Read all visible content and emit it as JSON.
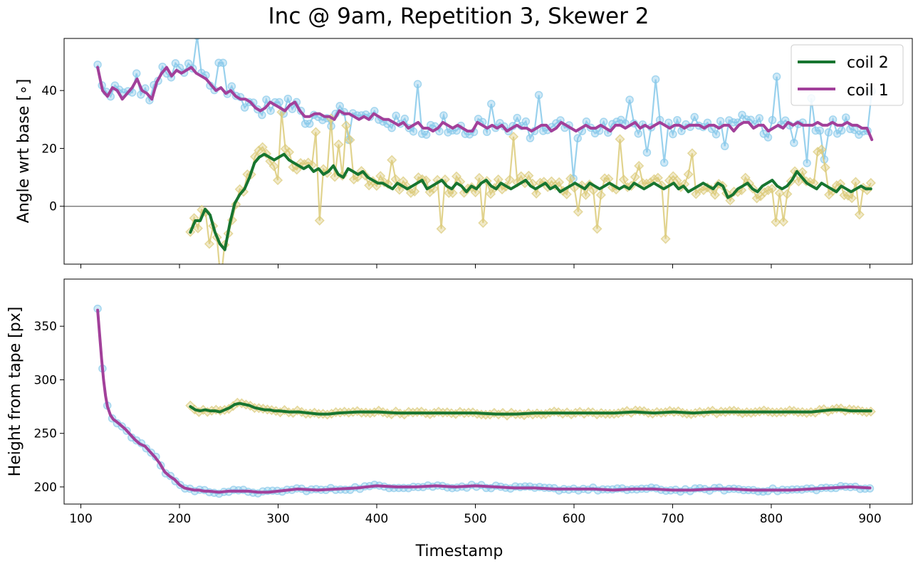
{
  "chart_data": {
    "title": "Inc @ 9am, Repetition 3, Skewer 2",
    "xlabel": "Timestamp",
    "xticks": [
      100,
      200,
      300,
      400,
      500,
      600,
      700,
      800,
      900
    ],
    "xlim": [
      83,
      943
    ],
    "colors": {
      "coil1_line": "#a2409a",
      "coil1_raw": "#87c9ea",
      "coil2_line": "#177530",
      "coil2_raw": "#dccb7a",
      "zero_line": "#808080"
    },
    "legend": {
      "position": "top-right",
      "entries": [
        "coil 2",
        "coil 1"
      ]
    },
    "panels": [
      {
        "type": "line",
        "ylabel": "Angle wrt base [∘]",
        "ylim": [
          -20,
          58
        ],
        "yticks": [
          0,
          20,
          40
        ],
        "hline_y": 0,
        "series": [
          {
            "name": "coil 1",
            "role": "smoothed",
            "x": [
              117,
              122,
              127,
              132,
              137,
              142,
              147,
              152,
              157,
              162,
              167,
              172,
              177,
              182,
              187,
              192,
              197,
              202,
              207,
              212,
              217,
              222,
              227,
              232,
              237,
              242,
              247,
              252,
              257,
              262,
              267,
              272,
              277,
              282,
              287,
              292,
              297,
              302,
              307,
              312,
              317,
              322,
              327,
              332,
              337,
              342,
              347,
              352,
              357,
              362,
              367,
              372,
              377,
              382,
              387,
              392,
              397,
              402,
              407,
              412,
              417,
              422,
              427,
              432,
              437,
              442,
              447,
              452,
              457,
              462,
              467,
              472,
              477,
              482,
              487,
              492,
              497,
              502,
              507,
              512,
              517,
              522,
              527,
              532,
              537,
              542,
              547,
              552,
              557,
              562,
              567,
              572,
              577,
              582,
              587,
              592,
              597,
              602,
              607,
              612,
              617,
              622,
              627,
              632,
              637,
              642,
              647,
              652,
              657,
              662,
              667,
              672,
              677,
              682,
              687,
              692,
              697,
              702,
              707,
              712,
              717,
              722,
              727,
              732,
              737,
              742,
              747,
              752,
              757,
              762,
              767,
              772,
              777,
              782,
              787,
              792,
              797,
              802,
              807,
              812,
              817,
              822,
              827,
              832,
              837,
              842,
              847,
              852,
              857,
              862,
              867,
              872,
              877,
              882,
              887,
              892,
              897,
              902
            ],
            "y": [
              48,
              40,
              38,
              41,
              40,
              37,
              39,
              41,
              44,
              40,
              39,
              37,
              43,
              46,
              48,
              45,
              47,
              46,
              47,
              48,
              46,
              45,
              44,
              42,
              40,
              41,
              39,
              40,
              38,
              37,
              37,
              36,
              34,
              33,
              34,
              36,
              35,
              34,
              33,
              35,
              36,
              33,
              31,
              31,
              32,
              32,
              31,
              31,
              30,
              33,
              32,
              32,
              31,
              30,
              31,
              30,
              32,
              31,
              30,
              30,
              29,
              28,
              29,
              27,
              28,
              29,
              27,
              27,
              26,
              27,
              29,
              28,
              27,
              28,
              27,
              26,
              26,
              29,
              28,
              27,
              28,
              27,
              28,
              26,
              27,
              28,
              27,
              27,
              26,
              27,
              28,
              28,
              26,
              27,
              29,
              28,
              27,
              26,
              27,
              28,
              27,
              27,
              28,
              27,
              26,
              28,
              28,
              27,
              28,
              29,
              27,
              28,
              27,
              28,
              29,
              28,
              27,
              28,
              28,
              27,
              28,
              28,
              28,
              27,
              28,
              28,
              27,
              28,
              28,
              26,
              28,
              29,
              29,
              27,
              28,
              28,
              26,
              27,
              28,
              27,
              29,
              28,
              29,
              28,
              28,
              28,
              29,
              28,
              28,
              29,
              28,
              28,
              29,
              28,
              28,
              27,
              27,
              23
            ]
          },
          {
            "name": "coil 2",
            "role": "smoothed",
            "x": [
              211,
              216,
              221,
              226,
              231,
              236,
              241,
              246,
              251,
              256,
              261,
              266,
              271,
              276,
              281,
              286,
              291,
              296,
              301,
              306,
              311,
              316,
              321,
              326,
              331,
              336,
              341,
              346,
              351,
              356,
              361,
              366,
              371,
              376,
              381,
              386,
              391,
              396,
              401,
              406,
              411,
              416,
              421,
              426,
              431,
              436,
              441,
              446,
              451,
              456,
              461,
              466,
              471,
              476,
              481,
              486,
              491,
              496,
              501,
              506,
              511,
              516,
              521,
              526,
              531,
              536,
              541,
              546,
              551,
              556,
              561,
              566,
              571,
              576,
              581,
              586,
              591,
              596,
              601,
              606,
              611,
              616,
              621,
              626,
              631,
              636,
              641,
              646,
              651,
              656,
              661,
              666,
              671,
              676,
              681,
              686,
              691,
              696,
              701,
              706,
              711,
              716,
              721,
              726,
              731,
              736,
              741,
              746,
              751,
              756,
              761,
              766,
              771,
              776,
              781,
              786,
              791,
              796,
              801,
              806,
              811,
              816,
              821,
              826,
              831,
              836,
              841,
              846,
              851,
              856,
              861,
              866,
              871,
              876,
              881,
              886,
              891,
              896,
              901
            ],
            "y": [
              -9,
              -5,
              -5,
              -1,
              -3,
              -9,
              -13,
              -15,
              -6,
              1,
              4,
              6,
              10,
              15,
              17,
              18,
              17,
              16,
              17,
              18,
              16,
              15,
              14,
              13,
              14,
              12,
              13,
              11,
              12,
              14,
              11,
              10,
              13,
              12,
              11,
              12,
              10,
              9,
              8,
              8,
              7,
              6,
              8,
              7,
              6,
              7,
              8,
              9,
              6,
              7,
              8,
              9,
              7,
              6,
              8,
              7,
              5,
              7,
              6,
              8,
              9,
              7,
              6,
              8,
              7,
              6,
              7,
              8,
              9,
              7,
              6,
              7,
              8,
              6,
              7,
              5,
              6,
              7,
              8,
              7,
              6,
              8,
              7,
              6,
              7,
              8,
              7,
              6,
              7,
              6,
              8,
              7,
              6,
              7,
              8,
              7,
              6,
              7,
              8,
              6,
              7,
              5,
              6,
              7,
              8,
              7,
              6,
              8,
              7,
              3,
              4,
              6,
              7,
              8,
              6,
              5,
              7,
              8,
              9,
              7,
              6,
              7,
              9,
              12,
              10,
              8,
              7,
              6,
              8,
              7,
              6,
              5,
              7,
              6,
              5,
              6,
              7,
              6,
              6
            ]
          }
        ]
      },
      {
        "type": "line",
        "ylabel": "Height from tape [px]",
        "ylim": [
          184,
          394
        ],
        "yticks": [
          200,
          250,
          300,
          350
        ],
        "series": [
          {
            "name": "coil 1",
            "role": "smoothed",
            "x": [
              117,
              119,
              121,
              123,
              125,
              127,
              130,
              133,
              136,
              140,
              145,
              150,
              155,
              160,
              165,
              170,
              175,
              180,
              185,
              190,
              195,
              200,
              205,
              210,
              215,
              220,
              225,
              230,
              240,
              250,
              260,
              270,
              280,
              290,
              300,
              310,
              320,
              340,
              360,
              380,
              400,
              420,
              440,
              460,
              480,
              500,
              520,
              540,
              560,
              580,
              600,
              620,
              640,
              660,
              680,
              700,
              720,
              740,
              760,
              780,
              800,
              820,
              840,
              860,
              880,
              900
            ],
            "y": [
              365,
              342,
              320,
              300,
              285,
              275,
              267,
              263,
              261,
              258,
              254,
              249,
              244,
              240,
              238,
              233,
              228,
              222,
              214,
              210,
              207,
              202,
              199,
              198,
              197,
              197,
              196,
              196,
              195,
              196,
              196,
              196,
              195,
              195,
              196,
              197,
              198,
              197,
              198,
              199,
              201,
              200,
              200,
              201,
              200,
              201,
              200,
              199,
              199,
              198,
              198,
              198,
              197,
              198,
              198,
              197,
              197,
              198,
              198,
              197,
              197,
              197,
              198,
              199,
              200,
              199
            ]
          },
          {
            "name": "coil 2",
            "role": "smoothed",
            "x": [
              211,
              216,
              221,
              226,
              231,
              236,
              241,
              246,
              251,
              256,
              261,
              266,
              271,
              276,
              281,
              286,
              291,
              296,
              301,
              311,
              321,
              331,
              341,
              351,
              361,
              381,
              401,
              421,
              441,
              461,
              481,
              501,
              521,
              541,
              561,
              581,
              601,
              621,
              641,
              661,
              681,
              701,
              721,
              741,
              761,
              781,
              801,
              821,
              841,
              851,
              861,
              871,
              881,
              891,
              901
            ],
            "y": [
              275,
              272,
              271,
              272,
              271,
              271,
              270,
              272,
              274,
              277,
              278,
              277,
              276,
              274,
              273,
              272,
              272,
              271,
              271,
              270,
              270,
              269,
              268,
              268,
              269,
              270,
              270,
              269,
              269,
              269,
              269,
              269,
              268,
              268,
              269,
              269,
              269,
              269,
              269,
              270,
              269,
              270,
              269,
              270,
              270,
              270,
              270,
              270,
              270,
              271,
              272,
              272,
              271,
              271,
              271
            ]
          }
        ]
      }
    ]
  }
}
